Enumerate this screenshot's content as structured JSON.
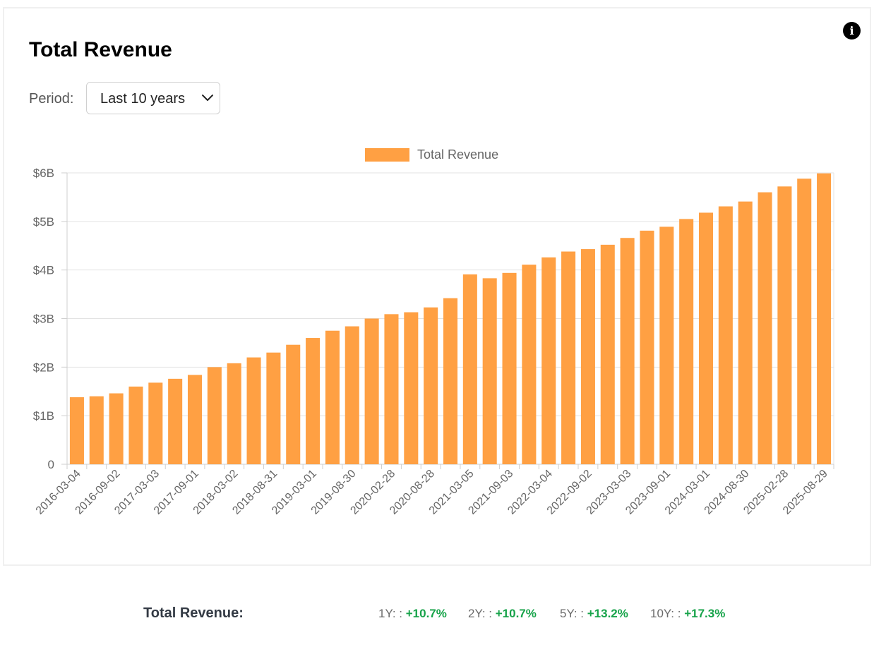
{
  "title": "Total Revenue",
  "period": {
    "label": "Period:",
    "selected": "Last 10 years"
  },
  "chart_data": {
    "type": "bar",
    "legend": {
      "label": "Total Revenue",
      "placement": "top-center"
    },
    "categories": [
      "2016-03-04",
      "2016-06-03",
      "2016-09-02",
      "2016-12-02",
      "2017-03-03",
      "2017-06-02",
      "2017-09-01",
      "2017-12-01",
      "2018-03-02",
      "2018-06-01",
      "2018-08-31",
      "2018-11-30",
      "2019-03-01",
      "2019-05-31",
      "2019-08-30",
      "2019-11-29",
      "2020-02-28",
      "2020-05-29",
      "2020-08-28",
      "2020-11-27",
      "2021-03-05",
      "2021-06-04",
      "2021-09-03",
      "2021-12-03",
      "2022-03-04",
      "2022-06-03",
      "2022-09-02",
      "2022-12-02",
      "2023-03-03",
      "2023-06-02",
      "2023-09-01",
      "2023-12-01",
      "2024-03-01",
      "2024-05-31",
      "2024-08-30",
      "2024-11-29",
      "2025-02-28",
      "2025-05-30",
      "2025-08-29"
    ],
    "tick_labels": [
      "2016-03-04",
      "2016-09-02",
      "2017-03-03",
      "2017-09-01",
      "2018-03-02",
      "2018-08-31",
      "2019-03-01",
      "2019-08-30",
      "2020-02-28",
      "2020-08-28",
      "2021-03-05",
      "2021-09-03",
      "2022-03-04",
      "2022-09-02",
      "2023-03-03",
      "2023-09-01",
      "2024-03-01",
      "2024-08-30",
      "2025-02-28",
      "2025-08-29"
    ],
    "series": [
      {
        "name": "Total Revenue",
        "color": "#ffa043",
        "values": [
          1.38,
          1.4,
          1.46,
          1.6,
          1.68,
          1.76,
          1.84,
          2.0,
          2.08,
          2.2,
          2.3,
          2.46,
          2.6,
          2.75,
          2.84,
          3.0,
          3.09,
          3.13,
          3.23,
          3.42,
          3.91,
          3.83,
          3.94,
          4.11,
          4.26,
          4.38,
          4.43,
          4.52,
          4.66,
          4.81,
          4.89,
          5.05,
          5.18,
          5.31,
          5.41,
          5.6,
          5.72,
          5.88,
          5.99
        ]
      }
    ],
    "y_ticks": [
      "0",
      "$1B",
      "$2B",
      "$3B",
      "$4B",
      "$5B",
      "$6B"
    ],
    "ylim": [
      0,
      6
    ],
    "y_unit": "billions USD",
    "grid": true
  },
  "growth": {
    "label": "Total Revenue:",
    "items": [
      {
        "key": "1Y: :",
        "value": "+10.7%"
      },
      {
        "key": "2Y: :",
        "value": "+10.7%"
      },
      {
        "key": "5Y: :",
        "value": "+13.2%"
      },
      {
        "key": "10Y: :",
        "value": "+17.3%"
      }
    ]
  },
  "colors": {
    "bar": "#ffa043",
    "positive": "#17a34a"
  }
}
